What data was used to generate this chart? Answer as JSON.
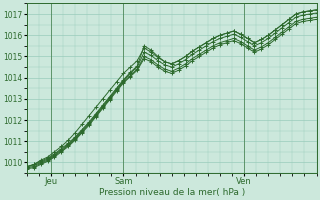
{
  "xlabel": "Pression niveau de la mer( hPa )",
  "background_color": "#cce8dc",
  "grid_color": "#99ccbb",
  "line_color": "#2d6a2d",
  "ylim": [
    1009.5,
    1017.5
  ],
  "xlim": [
    0,
    48
  ],
  "yticks": [
    1010,
    1011,
    1012,
    1013,
    1014,
    1015,
    1016,
    1017
  ],
  "xtick_positions": [
    4,
    16,
    36
  ],
  "xtick_labels": [
    "Jeu",
    "Sam",
    "Ven"
  ],
  "vline_positions": [
    4,
    16,
    36
  ],
  "series": [
    [
      1009.8,
      1009.9,
      1010.05,
      1010.2,
      1010.4,
      1010.65,
      1010.9,
      1011.2,
      1011.55,
      1011.9,
      1012.3,
      1012.7,
      1013.1,
      1013.5,
      1013.9,
      1014.25,
      1014.55,
      1015.5,
      1015.3,
      1015.0,
      1014.75,
      1014.65,
      1014.8,
      1015.0,
      1015.25,
      1015.45,
      1015.65,
      1015.85,
      1016.0,
      1016.1,
      1016.2,
      1016.05,
      1015.85,
      1015.65,
      1015.8,
      1016.0,
      1016.25,
      1016.5,
      1016.75,
      1017.0,
      1017.1,
      1017.15,
      1017.2
    ],
    [
      1009.8,
      1009.85,
      1010.0,
      1010.15,
      1010.35,
      1010.6,
      1010.85,
      1011.15,
      1011.5,
      1011.85,
      1012.25,
      1012.65,
      1013.05,
      1013.45,
      1013.85,
      1014.2,
      1014.5,
      1015.2,
      1015.05,
      1014.8,
      1014.6,
      1014.5,
      1014.65,
      1014.85,
      1015.1,
      1015.3,
      1015.5,
      1015.7,
      1015.85,
      1015.95,
      1016.05,
      1015.9,
      1015.7,
      1015.5,
      1015.65,
      1015.85,
      1016.1,
      1016.35,
      1016.6,
      1016.85,
      1016.95,
      1017.0,
      1017.05
    ],
    [
      1009.75,
      1009.8,
      1009.95,
      1010.1,
      1010.3,
      1010.55,
      1010.8,
      1011.1,
      1011.45,
      1011.8,
      1012.2,
      1012.6,
      1013.0,
      1013.4,
      1013.8,
      1014.1,
      1014.4,
      1015.0,
      1014.85,
      1014.6,
      1014.4,
      1014.3,
      1014.45,
      1014.65,
      1014.9,
      1015.1,
      1015.3,
      1015.5,
      1015.65,
      1015.75,
      1015.85,
      1015.7,
      1015.5,
      1015.3,
      1015.45,
      1015.65,
      1015.9,
      1016.15,
      1016.4,
      1016.65,
      1016.75,
      1016.8,
      1016.85
    ],
    [
      1009.7,
      1009.75,
      1009.9,
      1010.05,
      1010.25,
      1010.5,
      1010.75,
      1011.05,
      1011.4,
      1011.75,
      1012.15,
      1012.55,
      1012.95,
      1013.35,
      1013.75,
      1014.05,
      1014.35,
      1014.9,
      1014.75,
      1014.5,
      1014.3,
      1014.2,
      1014.35,
      1014.55,
      1014.8,
      1015.0,
      1015.2,
      1015.4,
      1015.55,
      1015.65,
      1015.75,
      1015.6,
      1015.4,
      1015.2,
      1015.35,
      1015.55,
      1015.8,
      1016.05,
      1016.3,
      1016.55,
      1016.65,
      1016.7,
      1016.75
    ],
    [
      1009.8,
      1009.9,
      1010.1,
      1010.25,
      1010.5,
      1010.75,
      1011.05,
      1011.4,
      1011.8,
      1012.2,
      1012.6,
      1013.0,
      1013.4,
      1013.8,
      1014.2,
      1014.5,
      1014.8,
      1015.4,
      1015.2,
      1014.95,
      1014.75,
      1014.65,
      1014.8,
      1015.0,
      1015.25,
      1015.45,
      1015.65,
      1015.85,
      1016.0,
      1016.1,
      1016.2,
      1016.05,
      1015.85,
      1015.65,
      1015.8,
      1016.0,
      1016.25,
      1016.5,
      1016.75,
      1017.0,
      1017.1,
      1017.15,
      1017.2
    ]
  ],
  "figsize": [
    3.2,
    2.0
  ],
  "dpi": 100,
  "ytick_fontsize": 5.5,
  "xtick_fontsize": 6,
  "xlabel_fontsize": 6.5
}
